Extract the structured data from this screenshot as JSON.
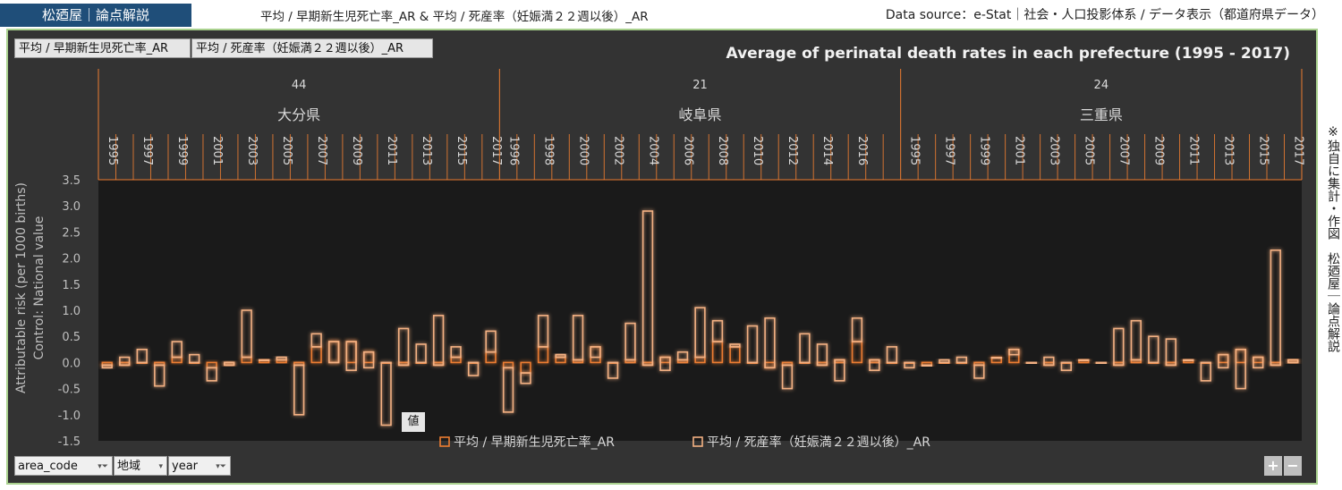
{
  "header": {
    "brand": "松廼屋｜論点解説",
    "series_title": "平均 / 早期新生児死亡率_AR & 平均 / 死産率（妊娠満２２週以後）_AR",
    "source": "Data source：e-Stat｜社会・人口投影体系 / データ表示（都道府県データ）"
  },
  "side_note": "※独自に集計・作図　松廼屋｜論点解説",
  "pivot": {
    "value_buttons": [
      "平均 / 早期新生児死亡率_AR",
      "平均 / 死産率（妊娠満２２週以後）_AR"
    ],
    "value_tag": "値",
    "filters": [
      "area_code",
      "地域",
      "year"
    ],
    "plus": "+",
    "minus": "−"
  },
  "colors": {
    "accent": "#ed7d31",
    "series2": "#f4b183",
    "plot_bg": "#1a1a1a",
    "panel_bg": "#333333",
    "panel_border": "#a9d18e"
  },
  "chart_data": {
    "type": "bar",
    "title": "Average of perinatal death rates in each prefecture (1995 - 2017)",
    "ylabel": "Attributable risk (per 1000 births)",
    "ylabel2": "Control: National value",
    "ylim": [
      -1.5,
      3.5
    ],
    "yticks": [
      "3.5",
      "3.0",
      "2.5",
      "2.0",
      "1.5",
      "1.0",
      "0.5",
      "0.0",
      "-0.5",
      "-1.0",
      "-1.5"
    ],
    "ytick_values": [
      3.5,
      3.0,
      2.5,
      2.0,
      1.5,
      1.0,
      0.5,
      0.0,
      -0.5,
      -1.0,
      -1.5
    ],
    "legend": [
      "平均 / 早期新生児死亡率_AR",
      "平均 / 死産率（妊娠満２２週以後）_AR"
    ],
    "legend_position": "bottom",
    "groups": [
      {
        "code": "44",
        "name": "大分県",
        "year_labels": [
          "1995",
          "1997",
          "1999",
          "2001",
          "2003",
          "2005",
          "2007",
          "2009",
          "2011",
          "2013",
          "2015",
          "2017"
        ],
        "series1": [
          -0.05,
          -0.05,
          0.0,
          -0.05,
          0.1,
          0.0,
          -0.1,
          -0.05,
          0.1,
          0.05,
          0.05,
          -0.05,
          0.3,
          0.4,
          0.4,
          0.2,
          0.0,
          -0.05,
          0.0,
          -0.05,
          0.1,
          0.0,
          0.2
        ],
        "series2": [
          -0.1,
          0.1,
          0.25,
          -0.45,
          0.4,
          0.15,
          -0.35,
          0.0,
          1.0,
          0.05,
          0.1,
          -1.0,
          0.55,
          0.0,
          -0.15,
          -0.1,
          -1.2,
          0.65,
          0.35,
          0.9,
          0.3,
          -0.25,
          0.6
        ]
      },
      {
        "code": "21",
        "name": "岐阜県",
        "year_labels": [
          "1996",
          "1998",
          "2000",
          "2002",
          "2004",
          "2006",
          "2008",
          "2010",
          "2012",
          "2014",
          "2016"
        ],
        "series1": [
          -0.1,
          -0.2,
          0.3,
          0.1,
          0.05,
          0.3,
          0.0,
          0.05,
          -0.05,
          0.1,
          0.05,
          0.1,
          0.4,
          0.3,
          0.0,
          -0.1,
          -0.05,
          0.0,
          -0.05,
          0.05,
          0.4,
          0.05,
          0.0
        ],
        "series2": [
          -0.95,
          -0.4,
          0.9,
          0.15,
          0.9,
          0.1,
          -0.3,
          0.75,
          2.9,
          -0.15,
          0.2,
          1.05,
          0.8,
          0.35,
          0.7,
          0.85,
          -0.5,
          0.55,
          0.35,
          -0.35,
          0.85,
          -0.15,
          0.3
        ]
      },
      {
        "code": "24",
        "name": "三重県",
        "year_labels": [
          "1995",
          "1997",
          "1999",
          "2001",
          "2003",
          "2005",
          "2007",
          "2009",
          "2011",
          "2013",
          "2015",
          "2017"
        ],
        "series1": [
          0.0,
          -0.05,
          0.0,
          0.0,
          -0.05,
          0.1,
          0.25,
          0.0,
          -0.05,
          0.0,
          0.05,
          0.0,
          -0.05,
          0.05,
          0.0,
          -0.05,
          0.05,
          0.0,
          0.15,
          0.25,
          0.1,
          -0.05,
          0.05
        ],
        "series2": [
          -0.1,
          -0.05,
          0.05,
          0.1,
          -0.3,
          0.1,
          0.15,
          0.0,
          0.1,
          -0.15,
          0.05,
          0.0,
          0.65,
          0.8,
          0.5,
          0.45,
          0.05,
          -0.35,
          -0.1,
          -0.5,
          -0.1,
          2.15,
          0.0
        ]
      }
    ]
  }
}
